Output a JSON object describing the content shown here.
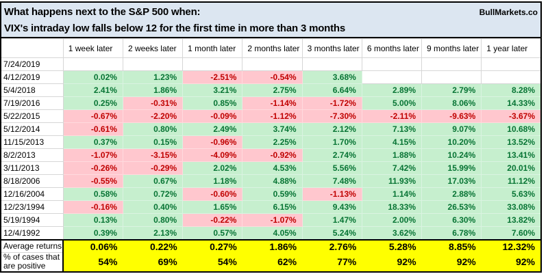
{
  "page": {
    "title_line1": "What happens next to the S&P 500 when:",
    "title_line2": "VIX's intraday low falls below 12 for the first time in more than 3 months",
    "brand": "BullMarkets.co"
  },
  "colors": {
    "title_bg": "#dce6f1",
    "positive_bg": "#c6efce",
    "positive_text": "#077434",
    "negative_bg": "#ffc7ce",
    "negative_text": "#c00000",
    "summary_bg": "#ffff00",
    "gridline": "#d6d6d6",
    "border": "#000000"
  },
  "chart_data": {
    "type": "table",
    "title": "What happens next to the S&P 500 when: VIX's intraday low falls below 12 for the first time in more than 3 months",
    "columns": [
      "1 week later",
      "2 weeks later",
      "1 month later",
      "2 months later",
      "3 months later",
      "6 months later",
      "9 months later",
      "1 year later"
    ],
    "rows": [
      {
        "date": "7/24/2019",
        "values": [
          null,
          null,
          null,
          null,
          null,
          null,
          null,
          null
        ]
      },
      {
        "date": "4/12/2019",
        "values": [
          "0.02%",
          "1.23%",
          "-2.51%",
          "-0.54%",
          "3.68%",
          null,
          null,
          null
        ]
      },
      {
        "date": "5/4/2018",
        "values": [
          "2.41%",
          "1.86%",
          "3.21%",
          "2.75%",
          "6.64%",
          "2.89%",
          "2.79%",
          "8.28%"
        ]
      },
      {
        "date": "7/19/2016",
        "values": [
          "0.25%",
          "-0.31%",
          "0.85%",
          "-1.14%",
          "-1.72%",
          "5.00%",
          "8.06%",
          "14.33%"
        ]
      },
      {
        "date": "5/22/2015",
        "values": [
          "-0.67%",
          "-2.20%",
          "-0.09%",
          "-1.12%",
          "-7.30%",
          "-2.11%",
          "-9.63%",
          "-3.67%"
        ]
      },
      {
        "date": "5/12/2014",
        "values": [
          "-0.61%",
          "0.80%",
          "2.49%",
          "3.74%",
          "2.12%",
          "7.13%",
          "9.07%",
          "10.68%"
        ]
      },
      {
        "date": "11/15/2013",
        "values": [
          "0.37%",
          "0.15%",
          "-0.96%",
          "2.25%",
          "1.70%",
          "4.15%",
          "10.20%",
          "13.52%"
        ]
      },
      {
        "date": "8/2/2013",
        "values": [
          "-1.07%",
          "-3.15%",
          "-4.09%",
          "-0.92%",
          "2.74%",
          "1.88%",
          "10.24%",
          "13.41%"
        ]
      },
      {
        "date": "3/11/2013",
        "values": [
          "-0.26%",
          "-0.29%",
          "2.02%",
          "4.53%",
          "5.56%",
          "7.42%",
          "15.99%",
          "20.01%"
        ]
      },
      {
        "date": "8/18/2006",
        "values": [
          "-0.55%",
          "0.67%",
          "1.18%",
          "4.88%",
          "7.48%",
          "11.93%",
          "17.03%",
          "11.12%"
        ]
      },
      {
        "date": "12/16/2004",
        "values": [
          "0.58%",
          "0.72%",
          "-0.60%",
          "0.59%",
          "-1.13%",
          "1.14%",
          "2.88%",
          "5.63%"
        ]
      },
      {
        "date": "12/23/1994",
        "values": [
          "-0.16%",
          "0.40%",
          "1.65%",
          "6.15%",
          "9.43%",
          "18.33%",
          "26.53%",
          "33.08%"
        ]
      },
      {
        "date": "5/19/1994",
        "values": [
          "0.13%",
          "0.80%",
          "-0.22%",
          "-1.07%",
          "1.47%",
          "2.00%",
          "6.30%",
          "13.82%"
        ]
      },
      {
        "date": "12/4/1992",
        "values": [
          "0.39%",
          "2.13%",
          "0.57%",
          "4.05%",
          "5.24%",
          "3.62%",
          "6.78%",
          "7.60%"
        ]
      }
    ],
    "summary": {
      "average_label": "Average returns",
      "average_values": [
        "0.06%",
        "0.22%",
        "0.27%",
        "1.86%",
        "2.76%",
        "5.28%",
        "8.85%",
        "12.32%"
      ],
      "percent_positive_label": "% of cases that are positive",
      "percent_positive_values": [
        "54%",
        "69%",
        "54%",
        "62%",
        "77%",
        "92%",
        "92%",
        "92%"
      ]
    }
  }
}
